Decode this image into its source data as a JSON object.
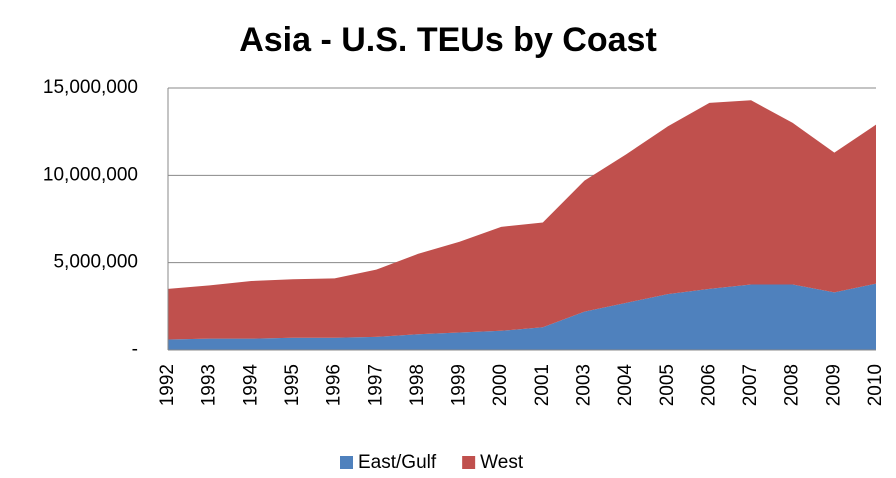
{
  "chart_data": {
    "type": "stacked_area",
    "title": "Asia - U.S. TEUs by Coast",
    "categories": [
      "1992",
      "1993",
      "1994",
      "1995",
      "1996",
      "1997",
      "1998",
      "1999",
      "2000",
      "2001",
      "2003",
      "2004",
      "2005",
      "2006",
      "2007",
      "2008",
      "2009",
      "2010"
    ],
    "series": [
      {
        "name": "East/Gulf",
        "color": "#4f81bd",
        "values": [
          600000,
          650000,
          650000,
          700000,
          700000,
          750000,
          900000,
          1000000,
          1100000,
          1300000,
          2200000,
          2700000,
          3200000,
          3500000,
          3750000,
          3750000,
          3300000,
          3800000
        ]
      },
      {
        "name": "West",
        "color": "#c0504d",
        "values": [
          2900000,
          3050000,
          3300000,
          3350000,
          3400000,
          3850000,
          4600000,
          5200000,
          5950000,
          6000000,
          7500000,
          8500000,
          9600000,
          10650000,
          10550000,
          9250000,
          8000000,
          9100000
        ]
      }
    ],
    "ylim": [
      0,
      15000000
    ],
    "yticks": [
      {
        "value": 0,
        "label": "-"
      },
      {
        "value": 5000000,
        "label": "5,000,000"
      },
      {
        "value": 10000000,
        "label": "10,000,000"
      },
      {
        "value": 15000000,
        "label": "15,000,000"
      }
    ],
    "grid": true,
    "legend": "bottom"
  }
}
